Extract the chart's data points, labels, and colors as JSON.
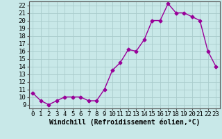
{
  "x": [
    0,
    1,
    2,
    3,
    4,
    5,
    6,
    7,
    8,
    9,
    10,
    11,
    12,
    13,
    14,
    15,
    16,
    17,
    18,
    19,
    20,
    21,
    22,
    23
  ],
  "y": [
    10.5,
    9.5,
    9.0,
    9.5,
    10.0,
    10.0,
    10.0,
    9.5,
    9.5,
    11.0,
    13.5,
    14.5,
    16.2,
    16.0,
    17.5,
    20.0,
    20.0,
    22.2,
    21.0,
    21.0,
    20.5,
    20.0,
    16.0,
    14.0
  ],
  "line_color": "#990099",
  "marker": "D",
  "markersize": 2.5,
  "linewidth": 1.0,
  "bg_color": "#c8e8e8",
  "grid_color": "#aacccc",
  "xlabel": "Windchill (Refroidissement éolien,°C)",
  "xlabel_fontsize": 7,
  "tick_fontsize": 6.5,
  "ylim": [
    8.5,
    22.5
  ],
  "xlim": [
    -0.5,
    23.5
  ],
  "yticks": [
    9,
    10,
    11,
    12,
    13,
    14,
    15,
    16,
    17,
    18,
    19,
    20,
    21,
    22
  ],
  "xticks": [
    0,
    1,
    2,
    3,
    4,
    5,
    6,
    7,
    8,
    9,
    10,
    11,
    12,
    13,
    14,
    15,
    16,
    17,
    18,
    19,
    20,
    21,
    22,
    23
  ]
}
